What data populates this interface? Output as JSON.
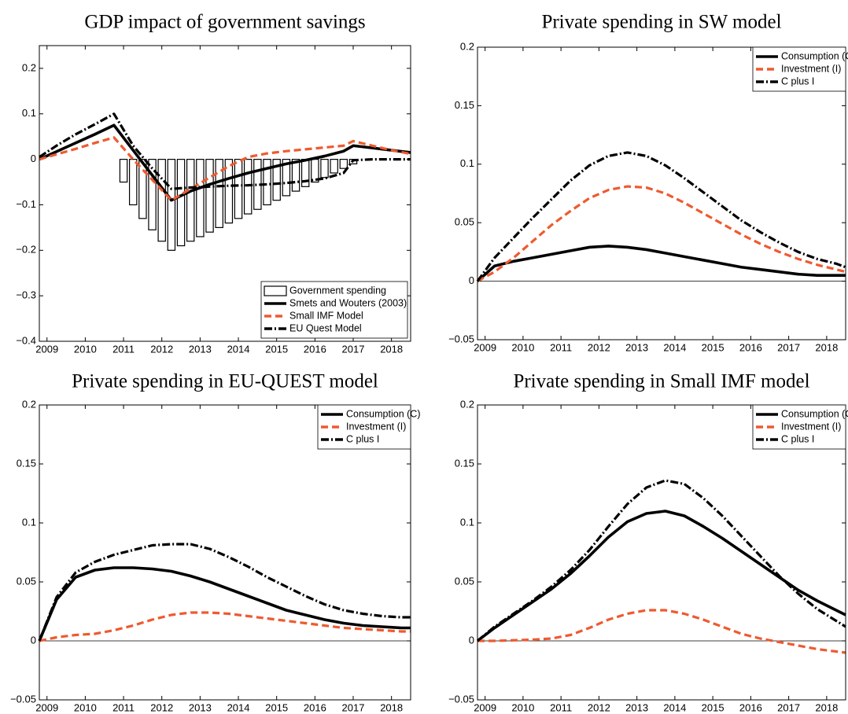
{
  "chart_data": [
    {
      "type": "line",
      "title": "GDP impact of government savings",
      "x": [
        2008.8,
        2009.25,
        2009.75,
        2010.25,
        2010.75,
        2011.25,
        2011.75,
        2012.25,
        2012.75,
        2013.25,
        2013.75,
        2014.25,
        2014.75,
        2015.25,
        2015.75,
        2016.25,
        2016.75,
        2017.0,
        2017.5,
        2018,
        2018.5
      ],
      "series": [
        {
          "name": "Government spending",
          "style": "bar",
          "color": "#000000",
          "x": [
            2011.0,
            2011.25,
            2011.5,
            2011.75,
            2012.0,
            2012.25,
            2012.5,
            2012.75,
            2013.0,
            2013.25,
            2013.5,
            2013.75,
            2014.0,
            2014.25,
            2014.5,
            2014.75,
            2015.0,
            2015.25,
            2015.5,
            2015.75,
            2016.0,
            2016.25,
            2016.5,
            2016.75,
            2017.0
          ],
          "values": [
            -0.05,
            -0.1,
            -0.13,
            -0.155,
            -0.18,
            -0.2,
            -0.19,
            -0.18,
            -0.17,
            -0.16,
            -0.15,
            -0.14,
            -0.13,
            -0.12,
            -0.11,
            -0.1,
            -0.09,
            -0.08,
            -0.07,
            -0.06,
            -0.05,
            -0.04,
            -0.03,
            -0.02,
            -0.01
          ]
        },
        {
          "name": "Smets and Wouters (2003)",
          "style": "solid",
          "color": "#000000",
          "values": [
            0,
            0.017,
            0.036,
            0.055,
            0.075,
            0.02,
            -0.035,
            -0.09,
            -0.07,
            -0.055,
            -0.042,
            -0.03,
            -0.02,
            -0.01,
            -0.002,
            0.007,
            0.018,
            0.03,
            0.025,
            0.02,
            0.015
          ]
        },
        {
          "name": "Small IMF Model",
          "style": "dashed",
          "color": "#ee5a2f",
          "values": [
            0,
            0.011,
            0.023,
            0.036,
            0.048,
            0,
            -0.045,
            -0.09,
            -0.065,
            -0.04,
            -0.015,
            0.005,
            0.013,
            0.018,
            0.022,
            0.026,
            0.03,
            0.04,
            0.03,
            0.02,
            0.012
          ]
        },
        {
          "name": "EU Quest Model",
          "style": "dashdot",
          "color": "#000000",
          "values": [
            0.005,
            0.03,
            0.055,
            0.077,
            0.1,
            0.03,
            -0.02,
            -0.065,
            -0.062,
            -0.06,
            -0.058,
            -0.057,
            -0.055,
            -0.052,
            -0.048,
            -0.042,
            -0.03,
            -0.002,
            0,
            0,
            0
          ]
        }
      ],
      "xlim": [
        2008.8,
        2018.5
      ],
      "xticks": [
        2009,
        2010,
        2011,
        2012,
        2013,
        2014,
        2015,
        2016,
        2017,
        2018
      ],
      "ylim": [
        -0.4,
        0.25
      ],
      "yticks": [
        {
          "value": -0.4,
          "label": "−0.4"
        },
        {
          "value": -0.3,
          "label": "−0.3"
        },
        {
          "value": -0.2,
          "label": "−0.2"
        },
        {
          "value": -0.1,
          "label": "−0.1"
        },
        0,
        0.1,
        0.2
      ],
      "legend": "lower right"
    },
    {
      "type": "line",
      "title": "Private spending in SW model",
      "x": [
        2008.8,
        2009.25,
        2009.75,
        2010.25,
        2010.75,
        2011.25,
        2011.75,
        2012.25,
        2012.75,
        2013.25,
        2013.75,
        2014.25,
        2014.75,
        2015.25,
        2015.75,
        2016.25,
        2016.75,
        2017.25,
        2017.75,
        2018.25,
        2018.5
      ],
      "series": [
        {
          "name": "Consumption (C)",
          "style": "solid",
          "color": "#000000",
          "values": [
            0,
            0.013,
            0.017,
            0.02,
            0.023,
            0.026,
            0.029,
            0.03,
            0.029,
            0.027,
            0.024,
            0.021,
            0.018,
            0.015,
            0.012,
            0.01,
            0.008,
            0.006,
            0.005,
            0.005,
            0.005
          ]
        },
        {
          "name": "Investment (I)",
          "style": "dashed",
          "color": "#ee5a2f",
          "values": [
            0,
            0.008,
            0.02,
            0.034,
            0.048,
            0.06,
            0.071,
            0.078,
            0.081,
            0.08,
            0.075,
            0.067,
            0.058,
            0.049,
            0.04,
            0.032,
            0.025,
            0.019,
            0.014,
            0.01,
            0.008
          ]
        },
        {
          "name": "C plus I",
          "style": "dashdot",
          "color": "#000000",
          "values": [
            0,
            0.02,
            0.037,
            0.054,
            0.07,
            0.086,
            0.099,
            0.107,
            0.11,
            0.107,
            0.099,
            0.088,
            0.076,
            0.064,
            0.052,
            0.042,
            0.033,
            0.025,
            0.019,
            0.015,
            0.012
          ]
        }
      ],
      "xlim": [
        2008.8,
        2018.5
      ],
      "xticks": [
        2009,
        2010,
        2011,
        2012,
        2013,
        2014,
        2015,
        2016,
        2017,
        2018
      ],
      "ylim": [
        -0.05,
        0.2
      ],
      "yticks": [
        {
          "value": -0.05,
          "label": "−0.05"
        },
        0,
        0.05,
        0.1,
        0.15,
        0.2
      ],
      "legend": "upper right"
    },
    {
      "type": "line",
      "title": "Private spending in EU-QUEST model",
      "x": [
        2008.8,
        2009.25,
        2009.75,
        2010.25,
        2010.75,
        2011.25,
        2011.75,
        2012.25,
        2012.75,
        2013.25,
        2013.75,
        2014.25,
        2014.75,
        2015.25,
        2015.75,
        2016.25,
        2016.75,
        2017.25,
        2017.75,
        2018.25,
        2018.5
      ],
      "series": [
        {
          "name": "Consumption (C)",
          "style": "solid",
          "color": "#000000",
          "values": [
            0,
            0.035,
            0.054,
            0.06,
            0.062,
            0.062,
            0.061,
            0.059,
            0.055,
            0.05,
            0.044,
            0.038,
            0.032,
            0.026,
            0.022,
            0.018,
            0.015,
            0.013,
            0.012,
            0.011,
            0.011
          ]
        },
        {
          "name": "Investment (I)",
          "style": "dashed",
          "color": "#ee5a2f",
          "values": [
            0,
            0.003,
            0.005,
            0.006,
            0.009,
            0.013,
            0.018,
            0.022,
            0.024,
            0.024,
            0.023,
            0.021,
            0.019,
            0.017,
            0.015,
            0.013,
            0.011,
            0.01,
            0.009,
            0.008,
            0.008
          ]
        },
        {
          "name": "C plus I",
          "style": "dashdot",
          "color": "#000000",
          "values": [
            0,
            0.037,
            0.058,
            0.067,
            0.073,
            0.077,
            0.081,
            0.082,
            0.082,
            0.078,
            0.071,
            0.063,
            0.054,
            0.046,
            0.038,
            0.031,
            0.026,
            0.023,
            0.021,
            0.02,
            0.02
          ]
        }
      ],
      "xlim": [
        2008.8,
        2018.5
      ],
      "xticks": [
        2009,
        2010,
        2011,
        2012,
        2013,
        2014,
        2015,
        2016,
        2017,
        2018
      ],
      "ylim": [
        -0.05,
        0.2
      ],
      "yticks": [
        {
          "value": -0.05,
          "label": "−0.05"
        },
        0,
        0.05,
        0.1,
        0.15,
        0.2
      ],
      "legend": "upper right"
    },
    {
      "type": "line",
      "title": "Private spending in Small IMF model",
      "x": [
        2008.8,
        2009.25,
        2009.75,
        2010.25,
        2010.75,
        2011.25,
        2011.75,
        2012.25,
        2012.75,
        2013.25,
        2013.75,
        2014.25,
        2014.75,
        2015.25,
        2015.75,
        2016.25,
        2016.75,
        2017.25,
        2017.75,
        2018.25,
        2018.5
      ],
      "series": [
        {
          "name": "Consumption (C)",
          "style": "solid",
          "color": "#000000",
          "values": [
            0,
            0.011,
            0.022,
            0.033,
            0.044,
            0.057,
            0.072,
            0.088,
            0.101,
            0.108,
            0.11,
            0.106,
            0.097,
            0.087,
            0.076,
            0.065,
            0.054,
            0.043,
            0.034,
            0.026,
            0.022
          ]
        },
        {
          "name": "Investment (I)",
          "style": "dashed",
          "color": "#ee5a2f",
          "values": [
            0,
            0,
            0.0005,
            0.001,
            0.002,
            0.005,
            0.011,
            0.018,
            0.023,
            0.026,
            0.026,
            0.023,
            0.018,
            0.012,
            0.006,
            0.002,
            -0.001,
            -0.004,
            -0.007,
            -0.009,
            -0.01
          ]
        },
        {
          "name": "C plus I",
          "style": "dashdot",
          "color": "#000000",
          "values": [
            0,
            0.012,
            0.023,
            0.034,
            0.046,
            0.06,
            0.077,
            0.097,
            0.116,
            0.13,
            0.136,
            0.133,
            0.121,
            0.106,
            0.089,
            0.072,
            0.055,
            0.04,
            0.027,
            0.017,
            0.012
          ]
        }
      ],
      "xlim": [
        2008.8,
        2018.5
      ],
      "xticks": [
        2009,
        2010,
        2011,
        2012,
        2013,
        2014,
        2015,
        2016,
        2017,
        2018
      ],
      "ylim": [
        -0.05,
        0.2
      ],
      "yticks": [
        {
          "value": -0.05,
          "label": "−0.05"
        },
        0,
        0.05,
        0.1,
        0.15,
        0.2
      ],
      "legend": "upper right"
    }
  ]
}
